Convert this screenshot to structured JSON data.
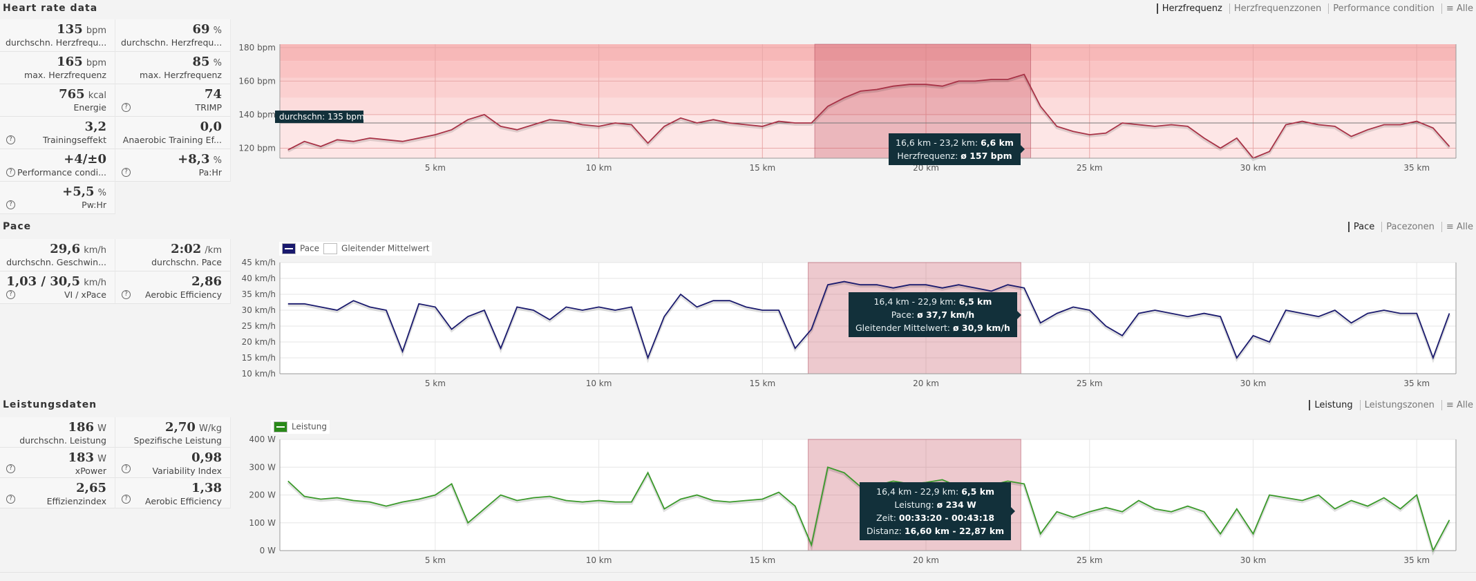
{
  "hr": {
    "title": "Heart rate data",
    "tabs": [
      "Herzfrequenz",
      "Herzfrequenzzonen",
      "Performance condition",
      "≡ Alle"
    ],
    "cells": [
      {
        "value": "135",
        "unit": "bpm",
        "label": "durchschn. Herzfrequ...",
        "help": false
      },
      {
        "value": "69",
        "unit": "%",
        "label": "durchschn. Herzfrequ...",
        "help": false
      },
      {
        "value": "165",
        "unit": "bpm",
        "label": "max. Herzfrequenz",
        "help": false
      },
      {
        "value": "85",
        "unit": "%",
        "label": "max. Herzfrequenz",
        "help": false
      },
      {
        "value": "765",
        "unit": "kcal",
        "label": "Energie",
        "help": false
      },
      {
        "value": "74",
        "unit": "",
        "label": "TRIMP",
        "help": true
      },
      {
        "value": "3,2",
        "unit": "",
        "label": "Trainingseffekt",
        "help": true
      },
      {
        "value": "0,0",
        "unit": "",
        "label": "Anaerobic Training Ef...",
        "help": false
      },
      {
        "value": "+4/±0",
        "unit": "",
        "label": "Performance condi...",
        "help": true
      },
      {
        "value": "+8,3",
        "unit": "%",
        "label": "Pa:Hr",
        "help": true
      },
      {
        "value": "+5,5",
        "unit": "%",
        "label": "Pw:Hr",
        "help": true
      }
    ],
    "avg_label": "durchschn: 135 bpm",
    "tooltip": {
      "line1": "16,6 km - 23,2 km: ",
      "line1b": "6,6 km",
      "line2": "Herzfrequenz: ",
      "line2b": "ø 157 bpm"
    }
  },
  "pace": {
    "title": "Pace",
    "tabs": [
      "Pace",
      "Pacezonen",
      "≡ Alle"
    ],
    "cells": [
      {
        "value": "29,6",
        "unit": "km/h",
        "label": "durchschn. Geschwin...",
        "help": false
      },
      {
        "value": "2:02",
        "unit": "/km",
        "label": "durchschn. Pace",
        "help": false
      },
      {
        "value": "1,03 / 30,5",
        "unit": "km/h",
        "label": "VI / xPace",
        "help": true
      },
      {
        "value": "2,86",
        "unit": "",
        "label": "Aerobic Efficiency",
        "help": true
      }
    ],
    "legend": [
      "Pace",
      "Gleitender Mittelwert"
    ],
    "tooltip": {
      "line1": "16,4 km - 22,9 km: ",
      "line1b": "6,5 km",
      "line2": "Pace: ",
      "line2b": "ø 37,7 km/h",
      "line3": "Gleitender Mittelwert: ",
      "line3b": "ø 30,9 km/h"
    }
  },
  "power": {
    "title": "Leistungsdaten",
    "tabs": [
      "Leistung",
      "Leistungszonen",
      "≡ Alle"
    ],
    "cells": [
      {
        "value": "186",
        "unit": "W",
        "label": "durchschn. Leistung",
        "help": false
      },
      {
        "value": "2,70",
        "unit": "W/kg",
        "label": "Spezifische Leistung",
        "help": false
      },
      {
        "value": "183",
        "unit": "W",
        "label": "xPower",
        "help": true
      },
      {
        "value": "0,98",
        "unit": "",
        "label": "Variability Index",
        "help": true
      },
      {
        "value": "2,65",
        "unit": "",
        "label": "Effizienzindex",
        "help": true
      },
      {
        "value": "1,38",
        "unit": "",
        "label": "Aerobic Efficiency",
        "help": true
      }
    ],
    "legend": [
      "Leistung"
    ],
    "tooltip": {
      "line1": "16,4 km - 22,9 km: ",
      "line1b": "6,5 km",
      "line2": "Leistung: ",
      "line2b": "ø 234 W",
      "line3": "Zeit: ",
      "line3b": "00:33:20 - 00:43:18",
      "line4": "Distanz: ",
      "line4b": "16,60 km - 22,87 km"
    }
  },
  "colors": {
    "hr": "#a83246",
    "pace": "#1a1a6e",
    "power": "#3a9a2a",
    "tooltip": "#12303a"
  },
  "chart_data": [
    {
      "type": "line",
      "name": "Herzfrequenz",
      "x_start": 0.5,
      "x_step": 0.5,
      "xlim": [
        0.25,
        36.2
      ],
      "ylim": [
        114,
        182
      ],
      "unit": "bpm",
      "yticks": [
        120,
        140,
        160,
        180
      ],
      "xticks": [
        5,
        10,
        15,
        20,
        25,
        30,
        35
      ],
      "selection": [
        16.6,
        23.2
      ],
      "average": 135,
      "zones": [
        [
          114,
          140
        ],
        [
          140,
          150
        ],
        [
          150,
          162
        ],
        [
          162,
          172
        ],
        [
          172,
          182
        ]
      ],
      "values": [
        119,
        124,
        121,
        125,
        124,
        126,
        125,
        124,
        126,
        128,
        131,
        137,
        140,
        133,
        131,
        134,
        137,
        136,
        134,
        133,
        135,
        134,
        123,
        133,
        138,
        135,
        137,
        135,
        134,
        133,
        136,
        135,
        135,
        145,
        150,
        154,
        155,
        157,
        158,
        158,
        157,
        160,
        160,
        161,
        161,
        164,
        145,
        133,
        130,
        128,
        129,
        135,
        134,
        133,
        134,
        133,
        126,
        120,
        126,
        114,
        118,
        134,
        136,
        134,
        133,
        127,
        131,
        134,
        134,
        136,
        132,
        121
      ]
    },
    {
      "type": "line",
      "name": "Pace",
      "x_start": 0.5,
      "x_step": 0.5,
      "xlim": [
        0.25,
        36.2
      ],
      "ylim": [
        10,
        45
      ],
      "unit": "km/h",
      "yticks": [
        10,
        15,
        20,
        25,
        30,
        35,
        40,
        45
      ],
      "xticks": [
        5,
        10,
        15,
        20,
        25,
        30,
        35
      ],
      "selection": [
        16.4,
        22.9
      ],
      "values": [
        32,
        32,
        31,
        30,
        33,
        31,
        30,
        17,
        32,
        31,
        24,
        28,
        30,
        18,
        31,
        30,
        27,
        31,
        30,
        31,
        30,
        31,
        15,
        28,
        35,
        31,
        33,
        33,
        31,
        30,
        30,
        18,
        24,
        38,
        39,
        38,
        38,
        37,
        38,
        38,
        37,
        38,
        37,
        36,
        38,
        37,
        26,
        29,
        31,
        30,
        25,
        22,
        29,
        30,
        29,
        28,
        29,
        28,
        15,
        22,
        20,
        30,
        29,
        28,
        30,
        26,
        29,
        30,
        29,
        29,
        15,
        29
      ]
    },
    {
      "type": "line",
      "name": "Leistung",
      "x_start": 0.5,
      "x_step": 0.5,
      "xlim": [
        0.25,
        36.2
      ],
      "ylim": [
        0,
        400
      ],
      "unit": "W",
      "yticks": [
        0,
        100,
        200,
        300,
        400
      ],
      "xticks": [
        5,
        10,
        15,
        20,
        25,
        30,
        35
      ],
      "selection": [
        16.4,
        22.9
      ],
      "values": [
        250,
        195,
        185,
        190,
        180,
        175,
        160,
        175,
        185,
        200,
        240,
        100,
        150,
        200,
        180,
        190,
        195,
        180,
        175,
        180,
        175,
        175,
        280,
        150,
        185,
        200,
        180,
        175,
        180,
        185,
        210,
        160,
        20,
        300,
        280,
        230,
        235,
        250,
        240,
        245,
        255,
        230,
        240,
        235,
        250,
        240,
        60,
        140,
        120,
        140,
        155,
        140,
        180,
        150,
        140,
        160,
        140,
        60,
        150,
        60,
        200,
        190,
        180,
        200,
        150,
        180,
        160,
        190,
        150,
        200,
        0,
        110
      ]
    }
  ]
}
